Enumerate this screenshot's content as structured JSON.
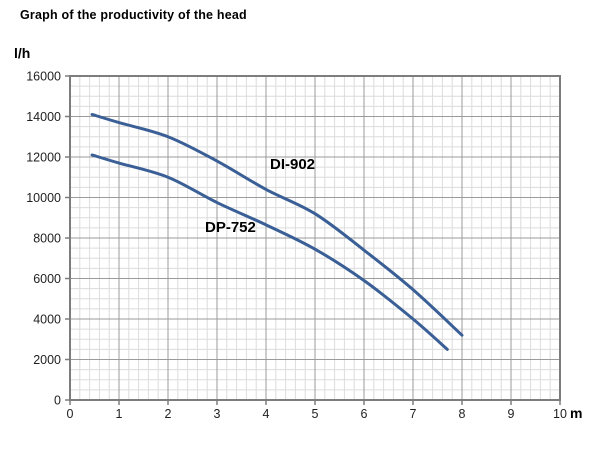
{
  "title": "Graph of the productivity of the head",
  "chart_data": {
    "type": "line",
    "title": "Graph of the productivity of the head",
    "xlabel": "m",
    "ylabel": "l/h",
    "xlim": [
      0,
      10
    ],
    "ylim": [
      0,
      16000
    ],
    "x_ticks": [
      0,
      1,
      2,
      3,
      4,
      5,
      6,
      7,
      8,
      9,
      10
    ],
    "y_ticks": [
      0,
      2000,
      4000,
      6000,
      8000,
      10000,
      12000,
      14000,
      16000
    ],
    "x_minor_step": 0.2,
    "y_minor_step": 500,
    "grid": "major and minor, graph-paper style, full plot box border",
    "legend_position": "labels next to curves inside plot",
    "series": [
      {
        "name": "DI-902",
        "color": "#3a5f96",
        "points": [
          [
            0.45,
            14100
          ],
          [
            1,
            13700
          ],
          [
            2,
            13000
          ],
          [
            3,
            11800
          ],
          [
            4,
            10400
          ],
          [
            5,
            9200
          ],
          [
            6,
            7400
          ],
          [
            7,
            5450
          ],
          [
            8,
            3200
          ]
        ]
      },
      {
        "name": "DP-752",
        "color": "#3a5f96",
        "points": [
          [
            0.45,
            12100
          ],
          [
            1,
            11700
          ],
          [
            2,
            11000
          ],
          [
            3,
            9750
          ],
          [
            4,
            8650
          ],
          [
            5,
            7450
          ],
          [
            6,
            5900
          ],
          [
            7,
            4000
          ],
          [
            7.7,
            2500
          ]
        ]
      }
    ],
    "colors": {
      "background": "#ffffff",
      "minor_grid": "#dcdcdc",
      "major_grid": "#9b9b9b",
      "plot_border": "#7d7d7d",
      "tick_text": "#1f1f1f",
      "curve": "#3a5f96"
    }
  }
}
